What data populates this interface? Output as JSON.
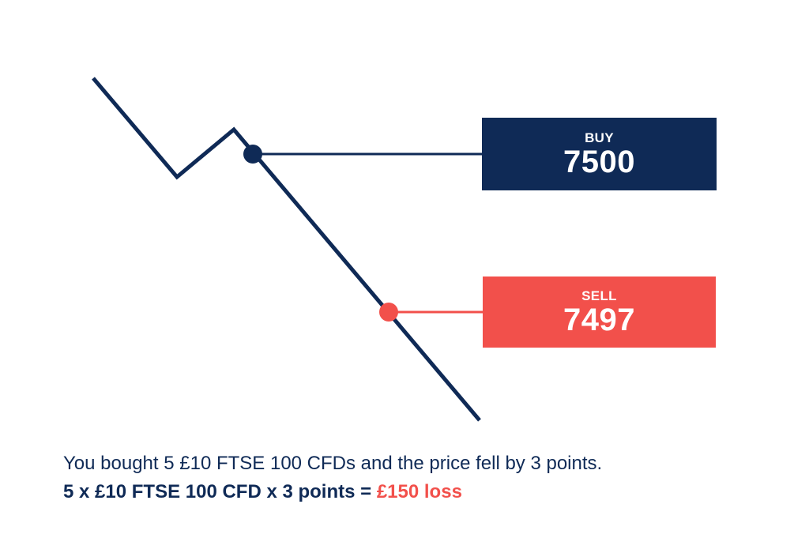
{
  "colors": {
    "navy": "#0f2a56",
    "red": "#f2504b",
    "background": "#ffffff"
  },
  "buy": {
    "label": "BUY",
    "value": "7500"
  },
  "sell": {
    "label": "SELL",
    "value": "7497"
  },
  "caption": {
    "line1": "You bought 5 £10 FTSE 100 CFDs and the price fell by 3 points.",
    "line2_formula": "5 x £10 FTSE 100 CFD x 3 points = ",
    "line2_result": "£150 loss"
  }
}
